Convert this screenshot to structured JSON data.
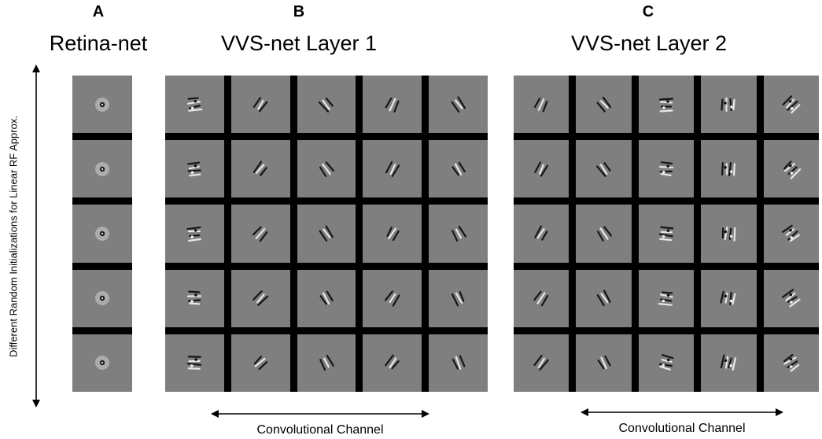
{
  "panels": [
    {
      "letter": "A",
      "title": "Retina-net",
      "rows": 5,
      "cols": 1
    },
    {
      "letter": "B",
      "title": "VVS-net Layer 1",
      "rows": 5,
      "cols": 5
    },
    {
      "letter": "C",
      "title": "VVS-net Layer 2",
      "rows": 5,
      "cols": 5
    }
  ],
  "axis": {
    "y_label": "Different Random Initializations for Linear RF Approx.",
    "x_label_b": "Convolutional Channel",
    "x_label_c": "Convolutional Channel"
  }
}
